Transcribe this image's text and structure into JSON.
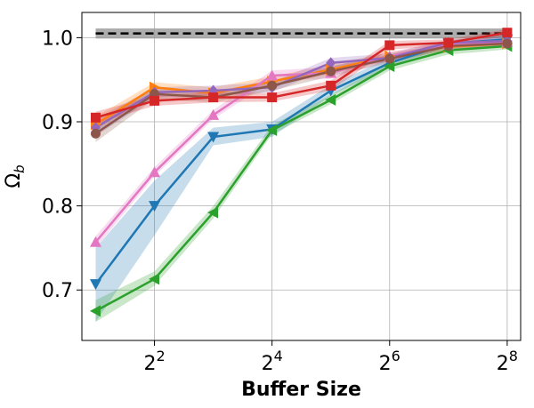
{
  "chart_data": {
    "type": "line",
    "xlabel": "Buffer Size",
    "ylabel": "Ω_b",
    "x_scale": "log2",
    "x": [
      2,
      4,
      8,
      16,
      32,
      64,
      128,
      256
    ],
    "xlim": [
      1.7,
      300
    ],
    "ylim": [
      0.64,
      1.03
    ],
    "xticks": [
      4,
      16,
      64,
      256
    ],
    "xtick_labels": [
      {
        "base": "2",
        "exp": "2"
      },
      {
        "base": "2",
        "exp": "4"
      },
      {
        "base": "2",
        "exp": "6"
      },
      {
        "base": "2",
        "exp": "8"
      }
    ],
    "yticks": [
      0.7,
      0.8,
      0.9,
      1.0
    ],
    "ytick_labels": [
      "0.7",
      "0.8",
      "0.9",
      "1.0"
    ],
    "grid": true,
    "reference": {
      "y": 1.005,
      "band": [
        0.999,
        1.011
      ],
      "style": "dashed",
      "color": "#000000",
      "band_color": "#999999"
    },
    "series": [
      {
        "color": "#1f77b4",
        "marker": "triangle-down",
        "values": [
          0.707,
          0.8,
          0.882,
          0.891,
          0.937,
          0.97,
          0.993,
          0.998
        ],
        "lo": [
          0.662,
          0.765,
          0.872,
          0.882,
          0.931,
          0.965,
          0.989,
          0.994
        ],
        "hi": [
          0.75,
          0.83,
          0.893,
          0.9,
          0.944,
          0.976,
          0.997,
          1.003
        ]
      },
      {
        "color": "#ff7f0e",
        "marker": "triangle-right",
        "values": [
          0.897,
          0.941,
          0.934,
          0.948,
          0.962,
          0.978,
          0.989,
          0.993
        ],
        "lo": [
          0.888,
          0.935,
          0.928,
          0.942,
          0.957,
          0.973,
          0.985,
          0.989
        ],
        "hi": [
          0.906,
          0.947,
          0.941,
          0.954,
          0.968,
          0.983,
          0.993,
          0.997
        ]
      },
      {
        "color": "#2ca02c",
        "marker": "triangle-left",
        "values": [
          0.675,
          0.713,
          0.792,
          0.89,
          0.926,
          0.966,
          0.985,
          0.99
        ],
        "lo": [
          0.662,
          0.705,
          0.785,
          0.885,
          0.921,
          0.961,
          0.98,
          0.986
        ],
        "hi": [
          0.688,
          0.722,
          0.8,
          0.896,
          0.932,
          0.972,
          0.99,
          0.994
        ]
      },
      {
        "color": "#e377c2",
        "marker": "triangle-up",
        "values": [
          0.757,
          0.84,
          0.908,
          0.955,
          0.958,
          0.978,
          0.992,
          0.995
        ],
        "lo": [
          0.75,
          0.835,
          0.903,
          0.949,
          0.951,
          0.973,
          0.988,
          0.991
        ],
        "hi": [
          0.764,
          0.846,
          0.914,
          0.961,
          0.965,
          0.983,
          0.996,
          0.999
        ]
      },
      {
        "color": "#9467bd",
        "marker": "diamond",
        "values": [
          0.893,
          0.935,
          0.937,
          0.941,
          0.97,
          0.976,
          0.994,
          0.996
        ],
        "lo": [
          0.883,
          0.929,
          0.931,
          0.935,
          0.964,
          0.971,
          0.99,
          0.992
        ],
        "hi": [
          0.903,
          0.941,
          0.943,
          0.947,
          0.976,
          0.981,
          0.998,
          1.0
        ]
      },
      {
        "color": "#8c564b",
        "marker": "circle",
        "values": [
          0.886,
          0.933,
          0.929,
          0.943,
          0.96,
          0.975,
          0.99,
          0.993
        ],
        "lo": [
          0.876,
          0.927,
          0.923,
          0.937,
          0.954,
          0.97,
          0.986,
          0.989
        ],
        "hi": [
          0.896,
          0.939,
          0.935,
          0.949,
          0.966,
          0.98,
          0.994,
          0.997
        ]
      },
      {
        "color": "#d62728",
        "marker": "square",
        "values": [
          0.905,
          0.925,
          0.929,
          0.929,
          0.943,
          0.991,
          0.994,
          1.006
        ],
        "lo": [
          0.898,
          0.919,
          0.923,
          0.924,
          0.937,
          0.986,
          0.99,
          1.002
        ],
        "hi": [
          0.912,
          0.931,
          0.935,
          0.934,
          0.949,
          0.996,
          0.998,
          1.01
        ]
      }
    ]
  }
}
